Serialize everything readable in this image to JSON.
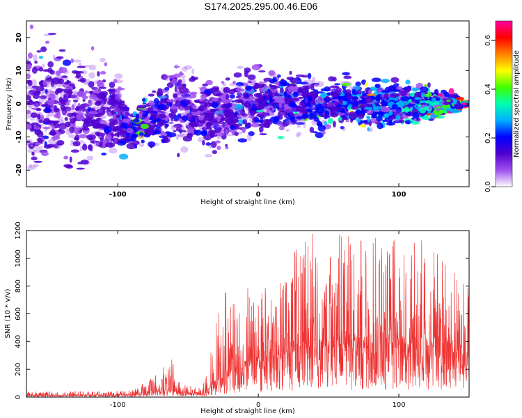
{
  "title": "S174.2025.295.00.46.E06",
  "chart_data": [
    {
      "type": "heatmap",
      "xlabel": "Height of straight line (km)",
      "ylabel": "Frequency (Hz)",
      "xlim": [
        -165,
        150
      ],
      "ylim": [
        -25,
        25
      ],
      "xticks": [
        -100,
        0,
        100
      ],
      "yticks": [
        -20,
        -10,
        0,
        10,
        20
      ],
      "colorbar": {
        "label": "Normalized spectral amplitude",
        "range": [
          0.0,
          0.68
        ],
        "ticks": [
          0.0,
          0.2,
          0.4,
          0.6
        ],
        "colormap": [
          "#ffffff",
          "#a050f0",
          "#5000d0",
          "#0000ff",
          "#00b0ff",
          "#00ffb0",
          "#40ff00",
          "#ffff00",
          "#ff8000",
          "#ff0000",
          "#ff00a0"
        ]
      },
      "ridge": [
        {
          "x": -165,
          "f_min": -25,
          "f_max": 25,
          "level": 0.12
        },
        {
          "x": -100,
          "f_min": -20,
          "f_max": 12,
          "level": 0.15
        },
        {
          "x": -90,
          "f_min": -14,
          "f_max": -3,
          "level": 0.22
        },
        {
          "x": -60,
          "f_min": -15,
          "f_max": 15,
          "level": 0.16
        },
        {
          "x": -30,
          "f_min": -16,
          "f_max": 8,
          "level": 0.15
        },
        {
          "x": 0,
          "f_min": -10,
          "f_max": 12,
          "level": 0.17
        },
        {
          "x": 50,
          "f_min": -10,
          "f_max": 10,
          "level": 0.22
        },
        {
          "x": 100,
          "f_min": -8,
          "f_max": 8,
          "level": 0.26
        },
        {
          "x": 140,
          "f_min": -4,
          "f_max": 4,
          "level": 0.4
        },
        {
          "x": 147,
          "f_min": -1,
          "f_max": 1,
          "level": 0.66
        }
      ]
    },
    {
      "type": "line",
      "xlabel": "Height of straight line (km)",
      "ylabel": "SNR (10 * v/v)",
      "xlim": [
        -165,
        150
      ],
      "ylim": [
        0,
        1200
      ],
      "xticks": [
        -100,
        0,
        100
      ],
      "yticks": [
        0,
        200,
        400,
        600,
        800,
        1000,
        1200
      ],
      "color": "#ee3333",
      "envelope": [
        {
          "x": -165,
          "base": 10,
          "peak": 40
        },
        {
          "x": -90,
          "base": 15,
          "peak": 50
        },
        {
          "x": -75,
          "base": 30,
          "peak": 150
        },
        {
          "x": -62,
          "base": 60,
          "peak": 290
        },
        {
          "x": -55,
          "base": 30,
          "peak": 100
        },
        {
          "x": -40,
          "base": 20,
          "peak": 60
        },
        {
          "x": -35,
          "base": 60,
          "peak": 260
        },
        {
          "x": -25,
          "base": 150,
          "peak": 800
        },
        {
          "x": 0,
          "base": 250,
          "peak": 800
        },
        {
          "x": 20,
          "base": 300,
          "peak": 1000
        },
        {
          "x": 40,
          "base": 350,
          "peak": 1200
        },
        {
          "x": 80,
          "base": 350,
          "peak": 1150
        },
        {
          "x": 120,
          "base": 350,
          "peak": 1150
        },
        {
          "x": 150,
          "base": 300,
          "peak": 800
        }
      ]
    }
  ]
}
